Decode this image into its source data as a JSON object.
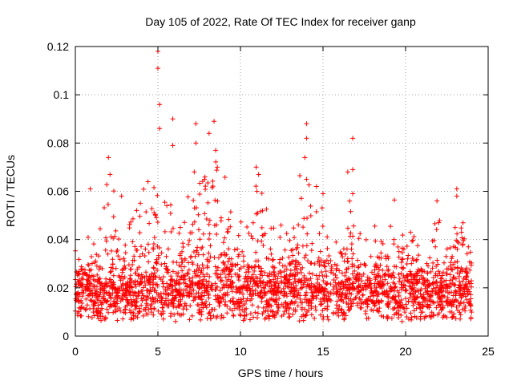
{
  "chart_data": {
    "type": "scatter",
    "title": "Day 105 of 2022, Rate Of TEC Index for receiver ganp",
    "xlabel": "GPS time / hours",
    "ylabel": "ROTI / TECUs",
    "xlim": [
      0,
      25
    ],
    "ylim": [
      0,
      0.12
    ],
    "xticks": [
      0,
      5,
      10,
      15,
      20,
      25
    ],
    "xtick_labels": [
      "0",
      "5",
      "10",
      "15",
      "20",
      "25"
    ],
    "yticks": [
      0,
      0.02,
      0.04,
      0.06,
      0.08,
      0.1,
      0.12
    ],
    "ytick_labels": [
      "0",
      "0.02",
      "0.04",
      "0.06",
      "0.08",
      "0.1",
      "0.12"
    ],
    "grid": true,
    "marker": "+",
    "color": "#ff0000",
    "series": [
      {
        "name": "ROTI",
        "description_note": "dense band of points roughly 0.005-0.03 across 0-24 h with peaks",
        "peaks": [
          {
            "x": 0.9,
            "y": 0.061
          },
          {
            "x": 2.0,
            "y": 0.074
          },
          {
            "x": 2.1,
            "y": 0.067
          },
          {
            "x": 2.8,
            "y": 0.058
          },
          {
            "x": 4.4,
            "y": 0.064
          },
          {
            "x": 5.0,
            "y": 0.118
          },
          {
            "x": 5.0,
            "y": 0.111
          },
          {
            "x": 5.1,
            "y": 0.096
          },
          {
            "x": 5.1,
            "y": 0.086
          },
          {
            "x": 5.9,
            "y": 0.09
          },
          {
            "x": 5.9,
            "y": 0.079
          },
          {
            "x": 7.3,
            "y": 0.088
          },
          {
            "x": 7.3,
            "y": 0.08
          },
          {
            "x": 7.2,
            "y": 0.068
          },
          {
            "x": 8.1,
            "y": 0.084
          },
          {
            "x": 8.4,
            "y": 0.089
          },
          {
            "x": 8.5,
            "y": 0.077
          },
          {
            "x": 8.6,
            "y": 0.07
          },
          {
            "x": 11.1,
            "y": 0.067
          },
          {
            "x": 11.0,
            "y": 0.06
          },
          {
            "x": 14.0,
            "y": 0.088
          },
          {
            "x": 14.0,
            "y": 0.082
          },
          {
            "x": 13.9,
            "y": 0.074
          },
          {
            "x": 14.0,
            "y": 0.065
          },
          {
            "x": 14.6,
            "y": 0.062
          },
          {
            "x": 15.0,
            "y": 0.059
          },
          {
            "x": 16.5,
            "y": 0.068
          },
          {
            "x": 16.8,
            "y": 0.082
          },
          {
            "x": 16.8,
            "y": 0.069
          },
          {
            "x": 16.8,
            "y": 0.059
          },
          {
            "x": 19.3,
            "y": 0.04
          },
          {
            "x": 20.3,
            "y": 0.043
          },
          {
            "x": 21.9,
            "y": 0.056
          },
          {
            "x": 22.0,
            "y": 0.047
          },
          {
            "x": 23.1,
            "y": 0.061
          },
          {
            "x": 23.1,
            "y": 0.058
          },
          {
            "x": 23.0,
            "y": 0.045
          },
          {
            "x": 23.8,
            "y": 0.037
          }
        ]
      }
    ]
  }
}
